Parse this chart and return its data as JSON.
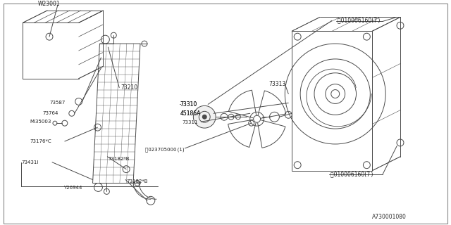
{
  "bg_color": "#ffffff",
  "line_color": "#4a4a4a",
  "label_color": "#222222",
  "part_number": "A730001080",
  "figsize": [
    6.4,
    3.2
  ],
  "dpi": 100,
  "xlim": [
    0,
    640
  ],
  "ylim": [
    0,
    320
  ]
}
